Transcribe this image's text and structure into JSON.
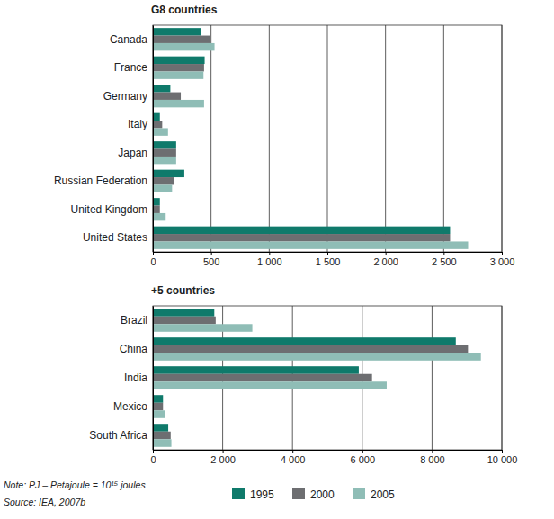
{
  "chart_data": [
    {
      "type": "bar",
      "orientation": "horizontal",
      "title": "G8 countries",
      "categories": [
        "Canada",
        "France",
        "Germany",
        "Italy",
        "Japan",
        "Russian Federation",
        "United Kingdom",
        "United States"
      ],
      "series": [
        {
          "name": "1995",
          "color": "#0f7a6b",
          "values": [
            415,
            445,
            150,
            60,
            200,
            270,
            60,
            2555
          ]
        },
        {
          "name": "2000",
          "color": "#6d6e71",
          "values": [
            490,
            440,
            240,
            80,
            200,
            180,
            60,
            2555
          ]
        },
        {
          "name": "2005",
          "color": "#8fbdb6",
          "values": [
            530,
            435,
            440,
            130,
            200,
            165,
            110,
            2710
          ]
        }
      ],
      "xlim": [
        0,
        3000
      ],
      "xticks": [
        0,
        500,
        {
          "value": 1000,
          "label": "1 000"
        },
        {
          "value": 1500,
          "label": "1 500"
        },
        {
          "value": 2000,
          "label": "2 000"
        },
        {
          "value": 2500,
          "label": "2 500"
        },
        {
          "value": 3000,
          "label": "3 000"
        }
      ],
      "grid": true,
      "legend": "bottom"
    },
    {
      "type": "bar",
      "orientation": "horizontal",
      "title": "+5 countries",
      "categories": [
        "Brazil",
        "China",
        "India",
        "Mexico",
        "South Africa"
      ],
      "series": [
        {
          "name": "1995",
          "color": "#0f7a6b",
          "values": [
            1760,
            8680,
            5900,
            290,
            440
          ]
        },
        {
          "name": "2000",
          "color": "#6d6e71",
          "values": [
            1800,
            9030,
            6280,
            290,
            510
          ]
        },
        {
          "name": "2005",
          "color": "#8fbdb6",
          "values": [
            2850,
            9400,
            6700,
            340,
            530
          ]
        }
      ],
      "xlim": [
        0,
        10000
      ],
      "xticks": [
        0,
        {
          "value": 2000,
          "label": "2 000"
        },
        {
          "value": 4000,
          "label": "4 000"
        },
        {
          "value": 6000,
          "label": "6 000"
        },
        {
          "value": 8000,
          "label": "8 000"
        },
        {
          "value": 10000,
          "label": "10 000"
        }
      ],
      "grid": true,
      "legend": "bottom"
    }
  ],
  "notes": [
    "Note: PJ – Petajoule = 10¹⁵ joules",
    "Source: IEA, 2007b"
  ]
}
